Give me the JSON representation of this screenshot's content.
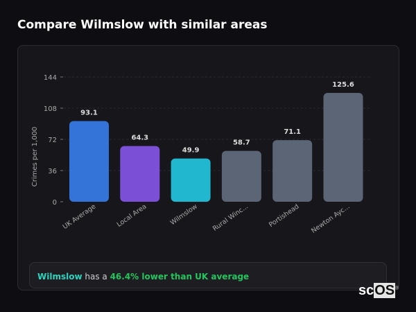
{
  "title": "Compare Wilmslow with similar areas",
  "chart_data": {
    "type": "bar",
    "title": "",
    "ylabel": "Crimes per 1,000",
    "xlabel": "",
    "ylim": [
      0,
      144
    ],
    "yticks": [
      0,
      36,
      72,
      108,
      144
    ],
    "grid": true,
    "categories": [
      "UK Average",
      "Local Area",
      "Wilmslow",
      "Rural Winc...",
      "Portishead",
      "Newton Ayc..."
    ],
    "values": [
      93.1,
      64.3,
      49.9,
      58.7,
      71.1,
      125.6
    ],
    "colors": [
      "#3474d8",
      "#7b4fd6",
      "#20b7cf",
      "#5b6576",
      "#5b6576",
      "#5b6576"
    ]
  },
  "footer": {
    "area": "Wilmslow",
    "middle": " has a ",
    "highlight": "46.4% lower than UK average"
  },
  "logo": {
    "text_a": "sc",
    "text_b": "OS",
    "mark": "®"
  }
}
